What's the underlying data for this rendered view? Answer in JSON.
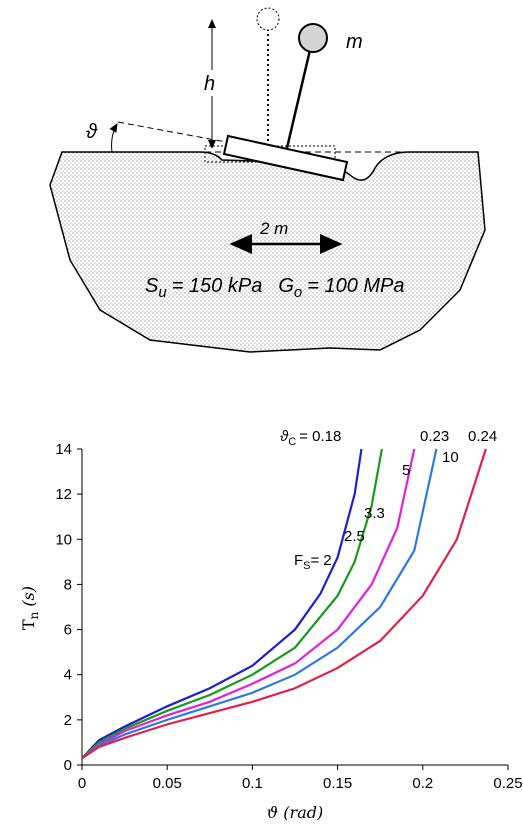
{
  "diagram": {
    "mass_label": "m",
    "height_label": "h",
    "rotation_label": "ϑ",
    "width_label": "2 m",
    "su_symbol": "S",
    "su_sub": "u",
    "su_value": "= 150 kPa",
    "go_symbol": "G",
    "go_sub": "o",
    "go_value": "= 100 MPa"
  },
  "chart_data": {
    "type": "line",
    "xlabel": "ϑ (rad)",
    "ylabel_symbol": "T",
    "ylabel_sub": "n",
    "ylabel_unit": "(s)",
    "xlim": [
      0,
      0.25
    ],
    "ylim": [
      0,
      14
    ],
    "xticks": [
      0,
      0.05,
      0.1,
      0.15,
      0.2,
      0.25
    ],
    "yticks": [
      0,
      2,
      4,
      6,
      8,
      10,
      12,
      14
    ],
    "critical_label_symbol": "ϑ",
    "critical_label_sub": "C",
    "critical_labels": [
      "= 0.18",
      "0.23",
      "0.24"
    ],
    "fs_label_symbol": "F",
    "fs_label_sub": "S",
    "fs_label_eq": "=",
    "series": [
      {
        "name": "2",
        "color": "#1f1fd0",
        "x": [
          0,
          0.01,
          0.025,
          0.05,
          0.075,
          0.1,
          0.125,
          0.14,
          0.15,
          0.16,
          0.164
        ],
        "values": [
          0.3,
          1.1,
          1.7,
          2.6,
          3.4,
          4.4,
          6.0,
          7.6,
          9.2,
          12,
          14
        ]
      },
      {
        "name": "2.5",
        "color": "#1a9a1a",
        "x": [
          0,
          0.01,
          0.025,
          0.05,
          0.075,
          0.1,
          0.125,
          0.15,
          0.16,
          0.17,
          0.176
        ],
        "values": [
          0.3,
          1.0,
          1.6,
          2.4,
          3.1,
          4.0,
          5.2,
          7.5,
          9.0,
          11.5,
          14
        ]
      },
      {
        "name": "3.3",
        "color": "#e020e0",
        "x": [
          0,
          0.01,
          0.025,
          0.05,
          0.075,
          0.1,
          0.125,
          0.15,
          0.17,
          0.185,
          0.195
        ],
        "values": [
          0.3,
          0.9,
          1.5,
          2.2,
          2.8,
          3.6,
          4.5,
          6.0,
          8.0,
          10.5,
          14
        ]
      },
      {
        "name": "5",
        "color": "#2a7ae0",
        "x": [
          0,
          0.01,
          0.025,
          0.05,
          0.075,
          0.1,
          0.125,
          0.15,
          0.175,
          0.195,
          0.208
        ],
        "values": [
          0.3,
          0.85,
          1.35,
          2.0,
          2.6,
          3.2,
          4.0,
          5.2,
          7.0,
          9.5,
          14
        ]
      },
      {
        "name": "10",
        "color": "#e0204a",
        "x": [
          0,
          0.01,
          0.025,
          0.05,
          0.075,
          0.1,
          0.125,
          0.15,
          0.175,
          0.2,
          0.22,
          0.237
        ],
        "values": [
          0.3,
          0.8,
          1.2,
          1.8,
          2.3,
          2.8,
          3.4,
          4.3,
          5.5,
          7.5,
          10,
          14
        ]
      }
    ]
  }
}
